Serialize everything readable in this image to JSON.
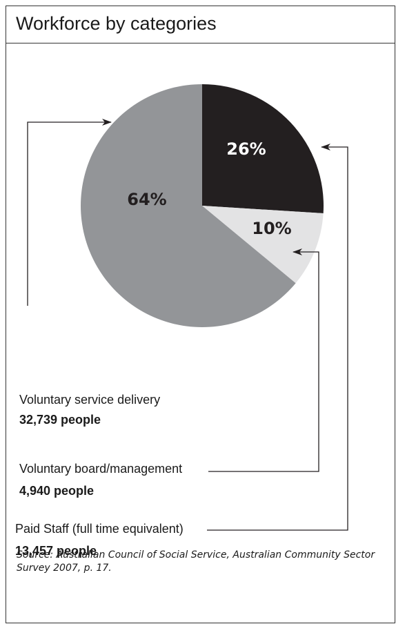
{
  "title": "Workforce by categories",
  "chart_data": {
    "type": "pie",
    "title": "Workforce by categories",
    "slices": [
      {
        "label": "Paid Staff (full time equivalent)",
        "count": "13,457 people",
        "percent": 26,
        "pct_label": "26%",
        "color": "#231f20"
      },
      {
        "label": "Voluntary board/management",
        "count": "4,940 people",
        "percent": 10,
        "pct_label": "10%",
        "color": "#e3e3e4"
      },
      {
        "label": "Voluntary service delivery",
        "count": "32,739 people",
        "percent": 64,
        "pct_label": "64%",
        "color": "#939598"
      }
    ]
  },
  "source": "Source: Australian Council of Social Service, Australian Community Sector Survey 2007, p. 17."
}
